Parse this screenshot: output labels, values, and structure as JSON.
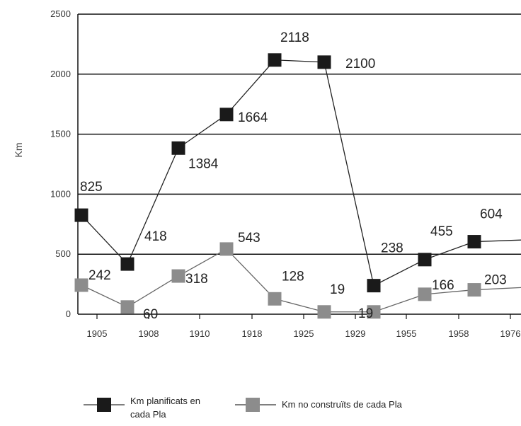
{
  "chart_data": {
    "type": "line",
    "ylabel": "Km",
    "xlabel": "",
    "title": "",
    "ylim": [
      0,
      2500
    ],
    "yticks": [
      0,
      500,
      1000,
      1500,
      2000,
      2500
    ],
    "grid": true,
    "legend_placement": "bottom",
    "categories": [
      "1905",
      "1908",
      "1910",
      "1918",
      "1925",
      "1929",
      "1955",
      "1958",
      "1976"
    ],
    "series": [
      {
        "name": "Km planificats en cada Pla",
        "color": "#1a1a1a",
        "values": [
          825,
          418,
          1384,
          1664,
          2118,
          2100,
          238,
          455,
          604
        ],
        "labels": [
          "825",
          "418",
          "1384",
          "1664",
          "2118",
          "2100",
          "238",
          "455",
          "604"
        ]
      },
      {
        "name": "Km no construïts de cada Pla",
        "color": "#8c8c8c",
        "values": [
          242,
          60,
          318,
          543,
          128,
          19,
          19,
          166,
          203
        ],
        "labels": [
          "242",
          "60",
          "318",
          "543",
          "128",
          "19",
          "19",
          "166",
          "203"
        ]
      }
    ]
  }
}
